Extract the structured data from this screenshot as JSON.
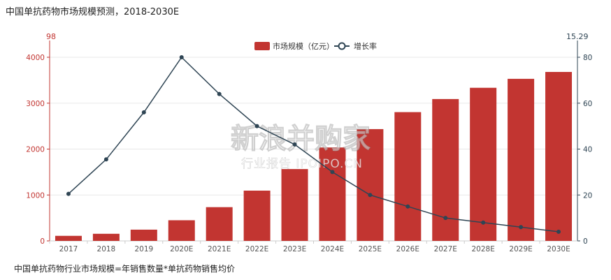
{
  "title": "中国单抗药物市场规模预测，2018-2030E",
  "footnote": "中国单抗药物行业市场规模=年销售数量*单抗药物销售均价",
  "corner_left": "98",
  "corner_right": "15.29",
  "watermark": {
    "line1": "新浪并购家",
    "line2": "行业报告 IPOIPO.CN"
  },
  "colors": {
    "bar": "#c23531",
    "line": "#2f4554",
    "grid": "#e8e8e8",
    "axis": "#cccccc"
  },
  "chart_data": {
    "type": "bar",
    "categories": [
      "2017",
      "2018",
      "2019",
      "2020E",
      "2021E",
      "2022E",
      "2023E",
      "2024E",
      "2025E",
      "2026E",
      "2027E",
      "2028E",
      "2029E",
      "2030E"
    ],
    "series": [
      {
        "name": "市场规模（亿元）",
        "type": "bar",
        "axis": "left",
        "values": [
          110,
          155,
          245,
          450,
          735,
          1095,
          1565,
          2035,
          2435,
          2805,
          3090,
          3335,
          3530,
          3680
        ]
      },
      {
        "name": "增长率",
        "type": "line",
        "axis": "right",
        "values": [
          20.5,
          35.5,
          56,
          80,
          64,
          50,
          42,
          30,
          20,
          15,
          10,
          8,
          6,
          4
        ]
      }
    ],
    "y_left": {
      "ylim": [
        0,
        4000
      ],
      "ticks": [
        "0",
        "1000",
        "2000",
        "3000",
        "4000"
      ]
    },
    "y_right": {
      "ylim": [
        0,
        80
      ],
      "ticks": [
        "0",
        "20",
        "40",
        "60",
        "80"
      ]
    },
    "legend": "top-center",
    "grid": true
  }
}
